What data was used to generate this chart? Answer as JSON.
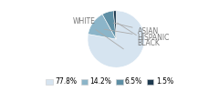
{
  "labels": [
    "WHITE",
    "HISPANIC",
    "ASIAN",
    "BLACK"
  ],
  "values": [
    77.8,
    14.2,
    6.5,
    1.5
  ],
  "colors": [
    "#d6e4f0",
    "#8cb5c9",
    "#5e8fa5",
    "#1e3a4f"
  ],
  "legend_labels": [
    "77.8%",
    "14.2%",
    "6.5%",
    "1.5%"
  ],
  "startangle": 90,
  "figsize": [
    2.4,
    1.0
  ],
  "dpi": 100,
  "label_color": "#777777",
  "label_fontsize": 5.5,
  "arrow_color": "#aaaaaa"
}
